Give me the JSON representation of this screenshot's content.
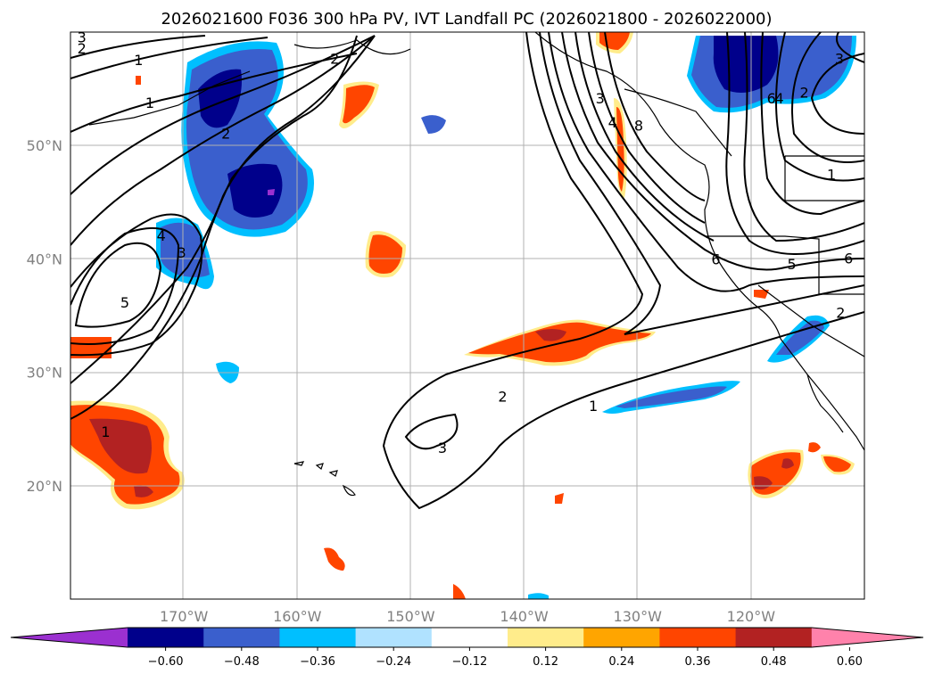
{
  "title": "2026021600 F036 300 hPa PV, IVT Landfall PC (2026021800 - 2026022000)",
  "map": {
    "lon_range": [
      -180,
      -110
    ],
    "lat_range": [
      10,
      60
    ],
    "lon_ticks": [
      {
        "value": -170,
        "label": "170°W"
      },
      {
        "value": -160,
        "label": "160°W"
      },
      {
        "value": -150,
        "label": "150°W"
      },
      {
        "value": -140,
        "label": "140°W"
      },
      {
        "value": -130,
        "label": "130°W"
      },
      {
        "value": -120,
        "label": "120°W"
      }
    ],
    "lat_ticks": [
      {
        "value": 20,
        "label": "20°N"
      },
      {
        "value": 30,
        "label": "30°N"
      },
      {
        "value": 40,
        "label": "40°N"
      },
      {
        "value": 50,
        "label": "50°N"
      }
    ],
    "grid": true
  },
  "colorbar": {
    "levels": [
      "−0.60",
      "−0.48",
      "−0.36",
      "−0.24",
      "−0.12",
      "0.12",
      "0.24",
      "0.36",
      "0.48",
      "0.60"
    ],
    "colors": [
      "#9b30d0",
      "#00008b",
      "#3a5fcd",
      "#00bfff",
      "#b0e2ff",
      "#ffffff",
      "#ffec8b",
      "#ffa500",
      "#ff4500",
      "#b22222",
      "#ff82ab"
    ],
    "extend": "both"
  },
  "contour_labels": [
    {
      "text": "1",
      "lon": -174,
      "lat": 57.5
    },
    {
      "text": "2",
      "lon": -179,
      "lat": 58.5
    },
    {
      "text": "3",
      "lon": -179,
      "lat": 59.5
    },
    {
      "text": "1",
      "lon": -173,
      "lat": 53.7
    },
    {
      "text": "2",
      "lon": -166.3,
      "lat": 51.0
    },
    {
      "text": "2",
      "lon": -156.7,
      "lat": 57.6
    },
    {
      "text": "4",
      "lon": -172,
      "lat": 42.0
    },
    {
      "text": "3",
      "lon": -170.2,
      "lat": 40.5
    },
    {
      "text": "5",
      "lon": -175.2,
      "lat": 36.1
    },
    {
      "text": "3",
      "lon": -133.3,
      "lat": 54.1
    },
    {
      "text": "4",
      "lon": -132.2,
      "lat": 52.0
    },
    {
      "text": "8",
      "lon": -129.9,
      "lat": 51.7
    },
    {
      "text": "4",
      "lon": -117.5,
      "lat": 54.1
    },
    {
      "text": "6",
      "lon": -118.2,
      "lat": 54.1
    },
    {
      "text": "2",
      "lon": -115.3,
      "lat": 54.6
    },
    {
      "text": "3",
      "lon": -112.2,
      "lat": 57.6
    },
    {
      "text": "1",
      "lon": -112.9,
      "lat": 47.4
    },
    {
      "text": "6",
      "lon": -123.1,
      "lat": 39.9
    },
    {
      "text": "5",
      "lon": -116.4,
      "lat": 39.5
    },
    {
      "text": "6",
      "lon": -111.4,
      "lat": 40.0
    },
    {
      "text": "2",
      "lon": -112.1,
      "lat": 35.2
    },
    {
      "text": "2",
      "lon": -141.9,
      "lat": 27.8
    },
    {
      "text": "1",
      "lon": -133.9,
      "lat": 27.0
    },
    {
      "text": "3",
      "lon": -147.2,
      "lat": 23.3
    },
    {
      "text": "1",
      "lon": -176.9,
      "lat": 24.7
    }
  ]
}
